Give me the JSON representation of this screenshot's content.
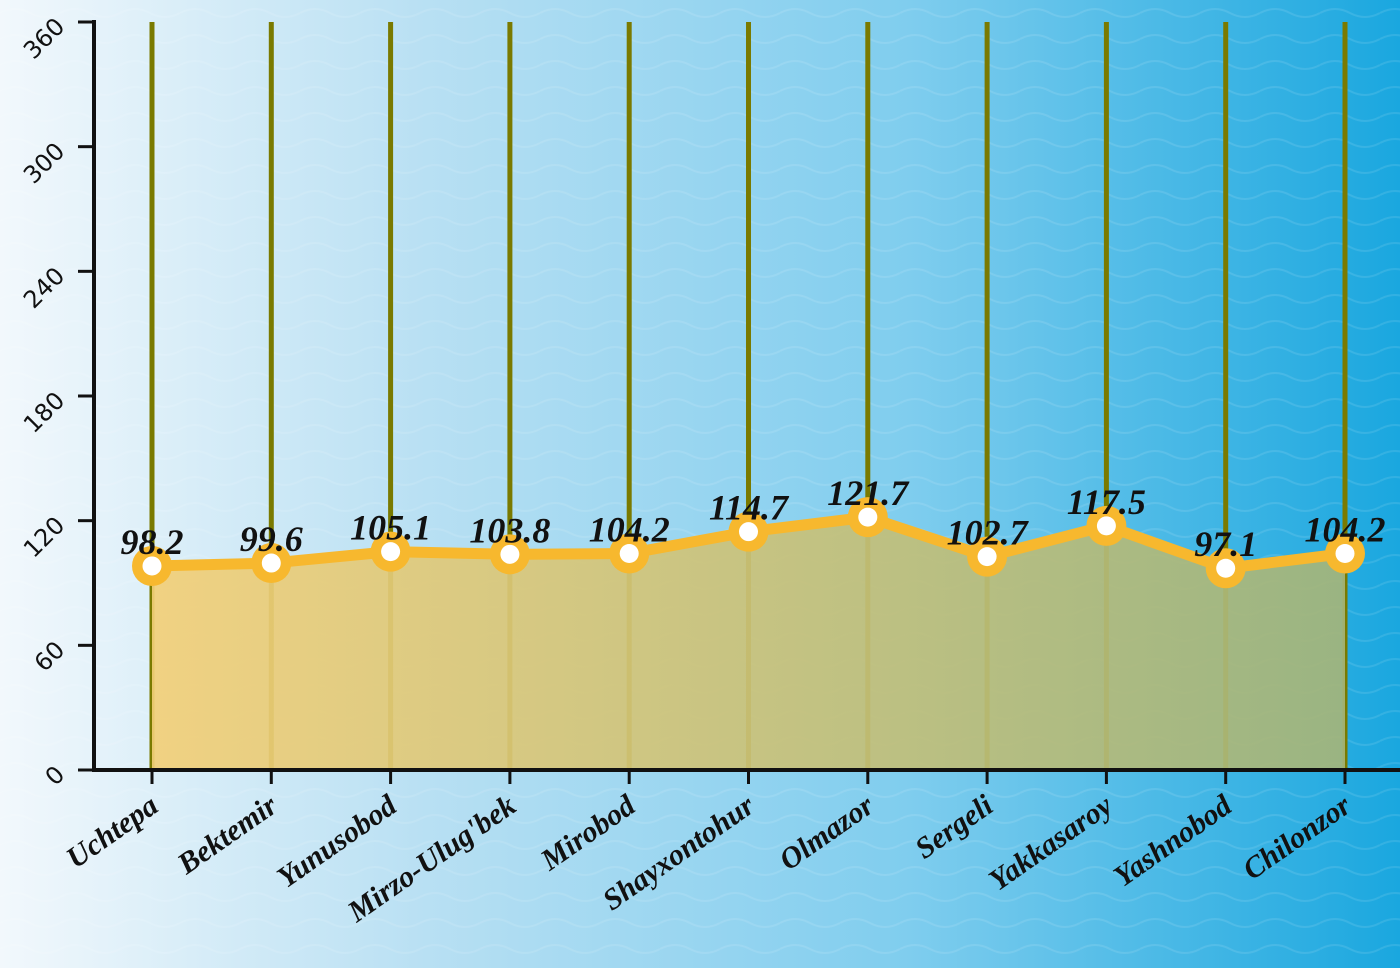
{
  "chart_data": {
    "type": "area",
    "title": "",
    "xlabel": "",
    "ylabel": "",
    "ylim": [
      0,
      360
    ],
    "yticks": [
      "0",
      "60",
      "120",
      "180",
      "240",
      "300",
      "360"
    ],
    "grid": "vertical",
    "categories": [
      "Uchtepa",
      "Bektemir",
      "Yunusobod",
      "Mirzo-Ulug'bek",
      "Mirobod",
      "Shayxontohur",
      "Olmazor",
      "Sergeli",
      "Yakkasaroy",
      "Yashnobod",
      "Chilonzor"
    ],
    "series": [
      {
        "values": [
          98.2,
          99.6,
          105.1,
          103.8,
          104.2,
          114.7,
          121.7,
          102.7,
          117.5,
          97.1,
          104.2
        ],
        "labels": [
          "98.2",
          "99.6",
          "105.1",
          "103.8",
          "104.2",
          "114.7",
          "121.7",
          "102.7",
          "117.5",
          "97.1",
          "104.2"
        ]
      }
    ],
    "colors": {
      "line": "#f7b82e",
      "fill_left": "#f2cf78",
      "fill_right": "#a4b57a",
      "gridline": "#7a7a00",
      "axis": "#111111",
      "marker_fill": "#ffffff"
    }
  }
}
